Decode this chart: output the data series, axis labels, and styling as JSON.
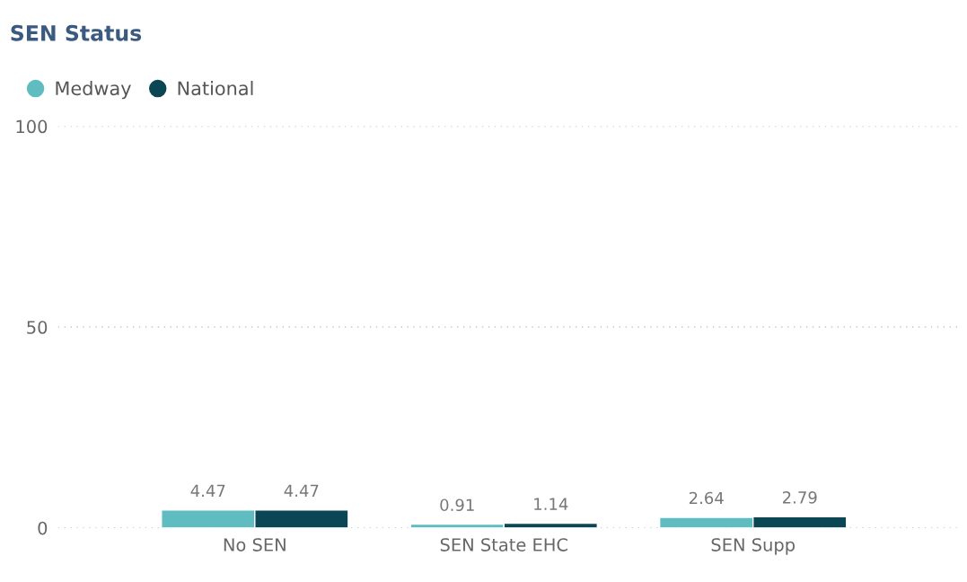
{
  "chart_data": {
    "type": "bar",
    "title": "SEN Status",
    "categories": [
      "No SEN",
      "SEN State EHC",
      "SEN Supp"
    ],
    "series": [
      {
        "name": "Medway",
        "color": "#5fbcc0",
        "values": [
          4.47,
          0.91,
          2.64
        ]
      },
      {
        "name": "National",
        "color": "#0b4654",
        "values": [
          4.47,
          1.14,
          2.79
        ]
      }
    ],
    "ylim": [
      0,
      100
    ],
    "yticks": [
      0,
      50,
      100
    ],
    "grid": "y",
    "legend": "top left",
    "data_labels": true
  }
}
